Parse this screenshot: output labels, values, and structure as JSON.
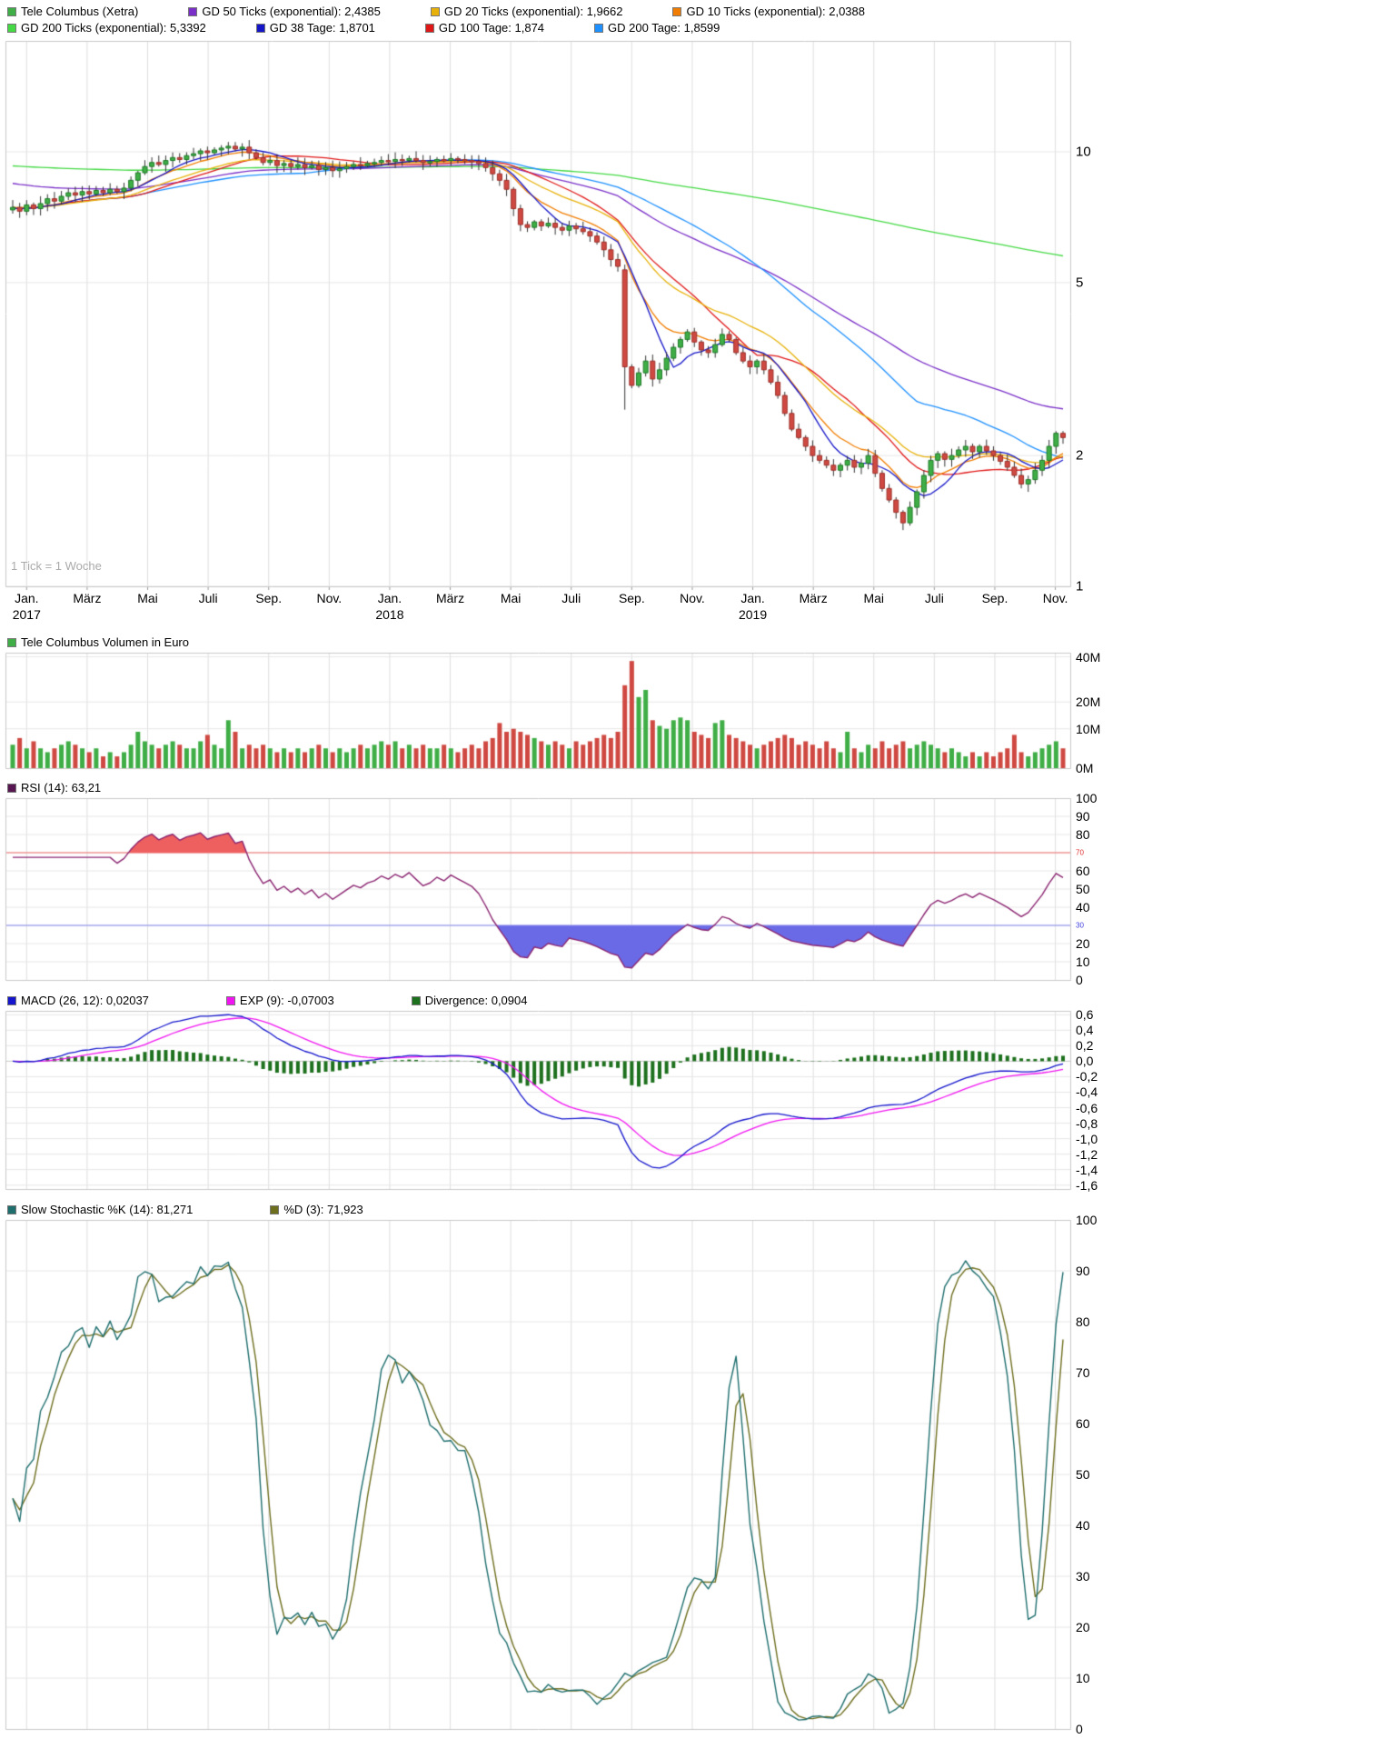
{
  "header": {
    "legend_row1": [
      {
        "label": "Tele Columbus (Xetra)",
        "color": "#3fae46"
      },
      {
        "label": "GD 50 Ticks (exponential): 2,4385",
        "color": "#7a30c8"
      },
      {
        "label": "GD 20 Ticks (exponential): 1,9662",
        "color": "#e7b10a"
      },
      {
        "label": "GD 10 Ticks (exponential): 2,0388",
        "color": "#f07d00"
      }
    ],
    "legend_row2": [
      {
        "label": "GD 200 Ticks (exponential): 5,3392",
        "color": "#45d945"
      },
      {
        "label": "GD 38 Tage: 1,8701",
        "color": "#1515c8"
      },
      {
        "label": "GD 100 Tage: 1,874",
        "color": "#e01717"
      },
      {
        "label": "GD 200 Tage: 1,8599",
        "color": "#1e90ff"
      }
    ]
  },
  "main_chart": {
    "tick_note": "1 Tick = 1 Woche",
    "price_axis": [
      {
        "label": "10",
        "value": 10
      },
      {
        "label": "5",
        "value": 5
      },
      {
        "label": "2",
        "value": 2
      },
      {
        "label": "1",
        "value": 1
      }
    ],
    "x_axis_months": [
      "Jan.",
      "März",
      "Mai",
      "Juli",
      "Sep.",
      "Nov.",
      "Jan.",
      "März",
      "Mai",
      "Juli",
      "Sep.",
      "Nov.",
      "Jan.",
      "März",
      "Mai",
      "Juli",
      "Sep.",
      "Nov."
    ],
    "x_axis_years": [
      {
        "label": "2017",
        "tick": 0
      },
      {
        "label": "2018",
        "tick": 6
      },
      {
        "label": "2019",
        "tick": 12
      }
    ]
  },
  "panels": {
    "volume": {
      "legend": [
        {
          "label": "Tele Columbus Volumen in Euro",
          "color": "#3fae46"
        }
      ],
      "axis": [
        {
          "label": "40M",
          "value": 40
        },
        {
          "label": "20M",
          "value": 20
        },
        {
          "label": "10M",
          "value": 10
        },
        {
          "label": "0M",
          "value": 0
        }
      ]
    },
    "rsi": {
      "legend": [
        {
          "label": "RSI (14): 63,21",
          "color": "#571552"
        }
      ],
      "axis_labels": [
        "100",
        "90",
        "80",
        "60",
        "50",
        "40",
        "20",
        "10",
        "0"
      ],
      "overbought_label": "70",
      "oversold_label": "30"
    },
    "macd": {
      "legend": [
        {
          "label": "MACD (26, 12): 0,02037",
          "color": "#1515cd"
        },
        {
          "label": "EXP (9): -0,07003",
          "color": "#f015f0"
        },
        {
          "label": "Divergence: 0,0904",
          "color": "#1d701d"
        }
      ],
      "axis": [
        {
          "label": "0,6",
          "value": 0.6
        },
        {
          "label": "0,4",
          "value": 0.4
        },
        {
          "label": "0,2",
          "value": 0.2
        },
        {
          "label": "0,0",
          "value": 0.0
        },
        {
          "label": "-0,2",
          "value": -0.2
        },
        {
          "label": "-0,4",
          "value": -0.4
        },
        {
          "label": "-0,6",
          "value": -0.6
        },
        {
          "label": "-0,8",
          "value": -0.8
        },
        {
          "label": "-1,0",
          "value": -1.0
        },
        {
          "label": "-1,2",
          "value": -1.2
        },
        {
          "label": "-1,4",
          "value": -1.4
        },
        {
          "label": "-1,6",
          "value": -1.6
        }
      ]
    },
    "stochastic": {
      "legend": [
        {
          "label": "Slow Stochastic %K (14): 81,271",
          "color": "#1f6e6e"
        },
        {
          "label": "%D (3): 71,923",
          "color": "#6e6e1f"
        }
      ],
      "axis_labels": [
        "100",
        "90",
        "80",
        "70",
        "60",
        "50",
        "40",
        "30",
        "20",
        "10",
        "0"
      ]
    }
  },
  "chart_data": {
    "type": "candlestick",
    "interval": "weekly",
    "instrument": "Tele Columbus (Xetra)",
    "x_range_note": "Jan 2017 - Nov 2019, 1 tick = 1 week",
    "price_scale": {
      "type": "log",
      "min": 1,
      "max": 18
    },
    "weekly_closes": [
      7.45,
      7.3,
      7.55,
      7.4,
      7.6,
      7.8,
      7.7,
      7.9,
      8.05,
      7.95,
      8.1,
      8.0,
      8.15,
      8.05,
      8.2,
      8.1,
      8.25,
      8.6,
      8.95,
      9.25,
      9.45,
      9.35,
      9.55,
      9.7,
      9.6,
      9.8,
      9.9,
      10.05,
      9.95,
      10.1,
      10.2,
      10.3,
      10.15,
      10.25,
      9.95,
      9.7,
      9.45,
      9.55,
      9.3,
      9.4,
      9.25,
      9.35,
      9.2,
      9.3,
      9.1,
      9.2,
      9.05,
      9.15,
      9.25,
      9.35,
      9.3,
      9.4,
      9.45,
      9.55,
      9.5,
      9.6,
      9.55,
      9.65,
      9.55,
      9.45,
      9.5,
      9.6,
      9.55,
      9.65,
      9.6,
      9.55,
      9.5,
      9.4,
      9.2,
      8.9,
      8.6,
      8.2,
      7.4,
      6.8,
      6.7,
      6.9,
      6.75,
      6.85,
      6.7,
      6.6,
      6.75,
      6.65,
      6.55,
      6.4,
      6.2,
      5.95,
      5.65,
      5.45,
      3.2,
      2.9,
      3.1,
      3.3,
      3.0,
      3.15,
      3.35,
      3.55,
      3.7,
      3.85,
      3.65,
      3.5,
      3.45,
      3.6,
      3.8,
      3.7,
      3.45,
      3.3,
      3.2,
      3.3,
      3.15,
      2.95,
      2.75,
      2.5,
      2.3,
      2.2,
      2.1,
      2.0,
      1.95,
      1.9,
      1.85,
      1.9,
      1.95,
      1.88,
      1.92,
      2.0,
      1.82,
      1.68,
      1.58,
      1.48,
      1.4,
      1.52,
      1.65,
      1.8,
      1.95,
      2.02,
      1.96,
      2.0,
      2.06,
      2.1,
      2.04,
      2.1,
      2.05,
      2.0,
      1.94,
      1.88,
      1.8,
      1.72,
      1.76,
      1.85,
      1.95,
      2.1,
      2.25,
      2.2
    ],
    "crash_candle_override": {
      "index": 88,
      "open": 5.35,
      "high": 5.5,
      "low": 2.55,
      "close": 3.2
    },
    "volumes_meur": [
      5,
      7,
      4,
      6,
      4,
      3,
      4,
      5,
      6,
      5,
      4,
      3,
      4,
      2,
      3,
      2,
      3,
      5,
      9,
      6,
      5,
      4,
      5,
      6,
      5,
      4,
      4,
      6,
      8,
      5,
      4,
      13,
      9,
      4,
      5,
      4,
      5,
      4,
      3,
      4,
      3,
      4,
      3,
      4,
      5,
      4,
      3,
      4,
      3,
      4,
      5,
      4,
      5,
      6,
      5,
      6,
      4,
      5,
      4,
      5,
      4,
      4,
      5,
      4,
      3,
      4,
      5,
      4,
      6,
      7,
      12,
      9,
      10,
      9,
      8,
      7,
      6,
      5,
      6,
      5,
      4,
      6,
      5,
      6,
      7,
      8,
      7,
      9,
      27,
      38,
      22,
      25,
      13,
      11,
      10,
      13,
      14,
      13,
      9,
      8,
      7,
      12,
      13,
      8,
      7,
      6,
      5,
      4,
      5,
      6,
      7,
      8,
      7,
      5,
      6,
      5,
      4,
      6,
      4,
      3,
      9,
      4,
      3,
      5,
      4,
      6,
      4,
      5,
      6,
      4,
      5,
      6,
      5,
      4,
      3,
      4,
      3,
      2,
      3,
      2,
      3,
      2,
      3,
      4,
      8,
      3,
      2,
      3,
      4,
      5,
      6,
      4
    ],
    "volume_scale": {
      "type": "power",
      "exponent": 0.75,
      "max": 42
    },
    "moving_averages": [
      {
        "name": "GD 200 Ticks (exponential)",
        "type": "ema",
        "period": 200,
        "seed": 9.3,
        "current": "5,3392",
        "color": "#45d945"
      },
      {
        "name": "GD 50 Ticks (exponential)",
        "type": "ema",
        "period": 50,
        "seed": 8.5,
        "current": "2,4385",
        "color": "#7a30c8"
      },
      {
        "name": "GD 200 Tage",
        "type": "sma",
        "period": 43,
        "current": "1,8599",
        "color": "#1e90ff"
      },
      {
        "name": "GD 100 Tage",
        "type": "sma",
        "period": 20,
        "current": "1,874",
        "color": "#e01717"
      },
      {
        "name": "GD 20 Ticks (exponential)",
        "type": "ema",
        "period": 20,
        "current": "1,9662",
        "color": "#e7b10a"
      },
      {
        "name": "GD 10 Ticks (exponential)",
        "type": "ema",
        "period": 10,
        "current": "2,0388",
        "color": "#f07d00"
      },
      {
        "name": "GD 38 Tage",
        "type": "sma",
        "period": 8,
        "current": "1,8701",
        "color": "#1515c8"
      }
    ],
    "rsi": {
      "period": 14,
      "current": "63,21",
      "overbought": 70,
      "oversold": 30,
      "line_color": "#8a2470",
      "overbought_fill": "#ee5f5f",
      "oversold_fill": "#6a6ae6",
      "overbought_line": "#f26b6b",
      "oversold_line": "#8585ef"
    },
    "macd": {
      "fast": 12,
      "slow": 26,
      "signal_period": 9,
      "current": "0,02037",
      "signal_current": "-0,07003",
      "divergence_current": "0,0904",
      "macd_color": "#1515cd",
      "signal_color": "#f015f0",
      "histogram_color": "#1d701d",
      "axis_min": -1.65,
      "axis_max": 0.65
    },
    "stochastic": {
      "k_period": 14,
      "slowing": 3,
      "d_period": 3,
      "k_current": "81,271",
      "d_current": "71,923",
      "k_color": "#1f6e6e",
      "d_color": "#6e6e1f"
    },
    "candle_colors": {
      "up": "#3fae46",
      "up_border": "#1e7a28",
      "down": "#cf4942",
      "down_border": "#9c2f29",
      "wick": "#333333"
    }
  }
}
